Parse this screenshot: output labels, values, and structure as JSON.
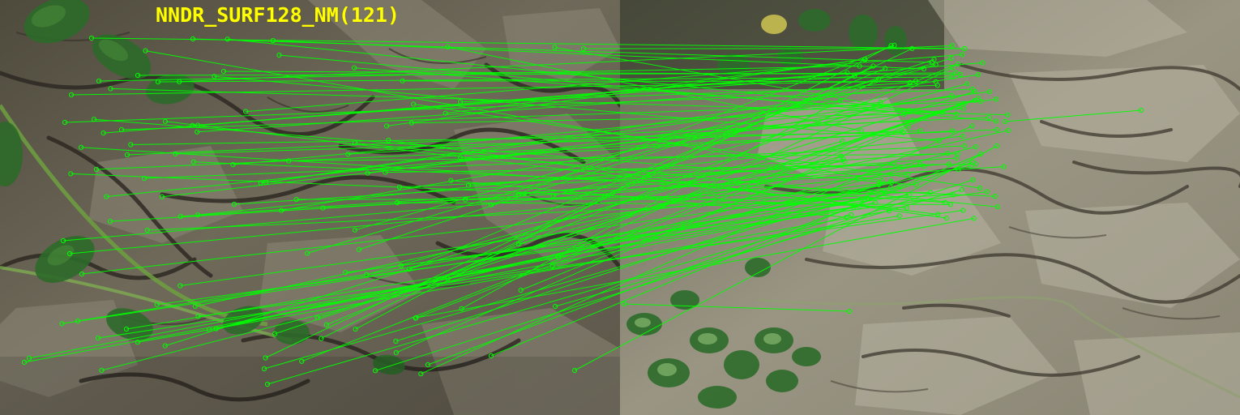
{
  "overlay": {
    "title": "NNDR_SURF128_NM(121)",
    "title_color": "#ffff00"
  },
  "match_style": {
    "line_color": "#00ff00",
    "keypoint_color": "#00ff00"
  },
  "photos": {
    "left": "tree bark with ivy leaves (left image of pair)",
    "right": "tree bark with ivy leaves (right image of pair)"
  }
}
